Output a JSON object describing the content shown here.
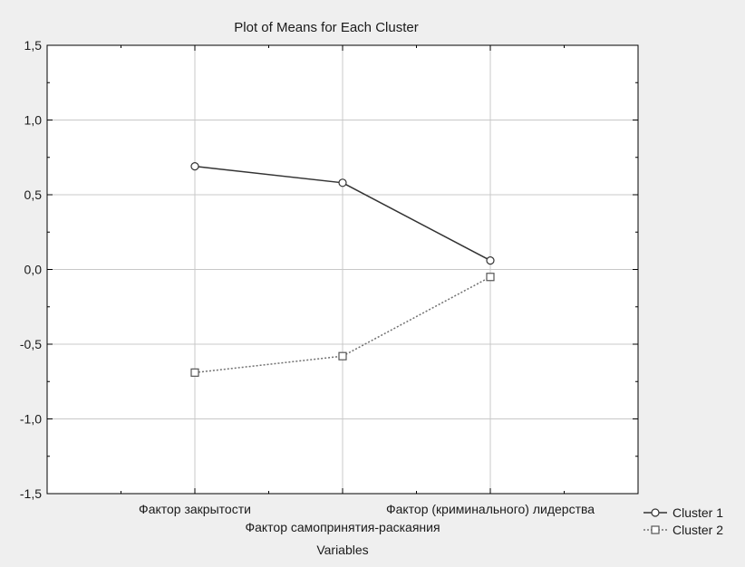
{
  "chart_data": {
    "type": "line",
    "title": "Plot of Means for Each Cluster",
    "xlabel": "Variables",
    "ylabel": "",
    "categories": [
      "Фактор закрытости",
      "Фактор самопринятия-раскаяния",
      "Фактор (криминального) лидерства"
    ],
    "ylim": [
      -1.5,
      1.5
    ],
    "yticks": [
      "-1,5",
      "-1,0",
      "-0,5",
      "0,0",
      "0,5",
      "1,0",
      "1,5"
    ],
    "grid": true,
    "legend_position": "bottom-right",
    "series": [
      {
        "name": "Cluster  1",
        "values": [
          0.69,
          0.58,
          0.06
        ],
        "marker": "circle",
        "line_style": "solid",
        "color": "#333333"
      },
      {
        "name": "Cluster  2",
        "values": [
          -0.69,
          -0.58,
          -0.05
        ],
        "marker": "square",
        "line_style": "dotted",
        "color": "#707070"
      }
    ]
  }
}
